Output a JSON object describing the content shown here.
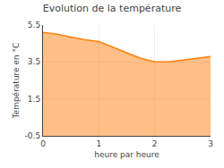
{
  "chart_data": {
    "type": "area",
    "title": "Evolution de la température",
    "xlabel": "heure par heure",
    "ylabel": "Température en °C",
    "x": [
      0,
      0.25,
      0.5,
      0.75,
      1.0,
      1.25,
      1.5,
      1.75,
      2.0,
      2.25,
      2.5,
      2.75,
      3.0
    ],
    "values": [
      5.1,
      5.0,
      4.85,
      4.7,
      4.6,
      4.3,
      4.0,
      3.7,
      3.5,
      3.5,
      3.6,
      3.7,
      3.8
    ],
    "xlim": [
      0,
      3
    ],
    "xticks": [
      0,
      1,
      2,
      3
    ],
    "ylim": [
      -0.5,
      5.5
    ],
    "yticks": [
      -0.5,
      1.5,
      3.5,
      5.5
    ],
    "grid": true
  }
}
